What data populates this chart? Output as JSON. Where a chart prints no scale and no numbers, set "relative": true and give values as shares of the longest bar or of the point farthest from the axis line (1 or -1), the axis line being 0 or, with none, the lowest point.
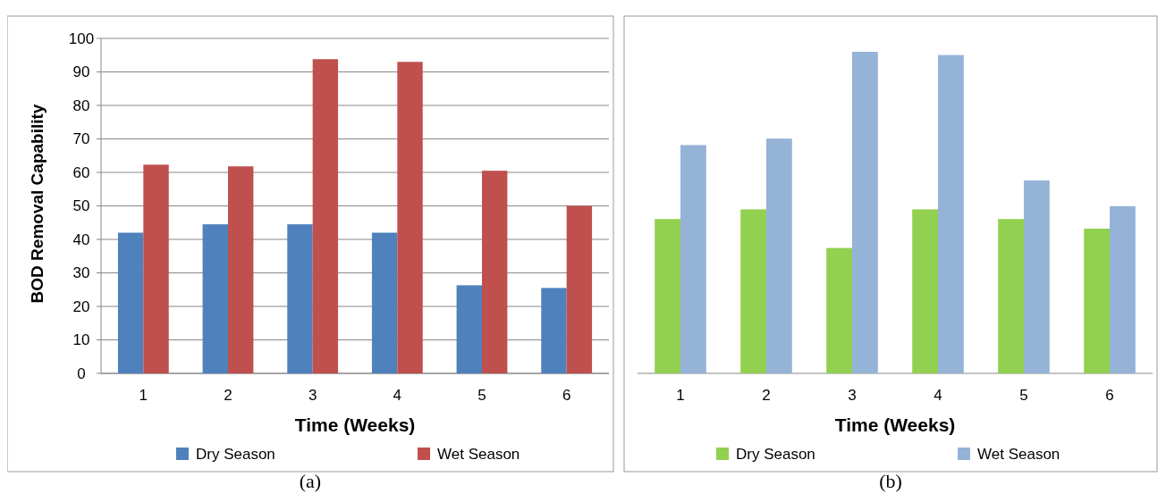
{
  "chart_data": [
    {
      "type": "bar",
      "xlabel": "Time (Weeks)",
      "ylabel": "BOD Removal Capability",
      "categories": [
        "1",
        "2",
        "3",
        "4",
        "5",
        "6"
      ],
      "series": [
        {
          "name": "Dry Season",
          "color": "#4f81bd",
          "values": [
            42,
            44.5,
            44.5,
            42,
            26.3,
            25.5
          ]
        },
        {
          "name": "Wet Season",
          "color": "#c0504d",
          "values": [
            62.3,
            61.8,
            93.8,
            93,
            60.5,
            50
          ]
        }
      ],
      "ylim": [
        0,
        100
      ],
      "yticks": [
        0,
        10,
        20,
        30,
        40,
        50,
        60,
        70,
        80,
        90,
        100
      ],
      "grid": "y",
      "legend": "bottom",
      "annotations": [
        "(a)"
      ]
    },
    {
      "type": "bar",
      "xlabel": "Time (Weeks)",
      "categories": [
        "1",
        "2",
        "3",
        "4",
        "5",
        "6"
      ],
      "relative": true,
      "series": [
        {
          "name": "Dry Season",
          "color": "#92d050",
          "values": [
            0.48,
            0.51,
            0.39,
            0.51,
            0.48,
            0.45
          ]
        },
        {
          "name": "Wet Season",
          "color": "#95b3d7",
          "values": [
            0.71,
            0.73,
            1,
            0.99,
            0.6,
            0.52
          ]
        }
      ],
      "legend": "bottom",
      "annotations": [
        "(b)"
      ]
    }
  ]
}
